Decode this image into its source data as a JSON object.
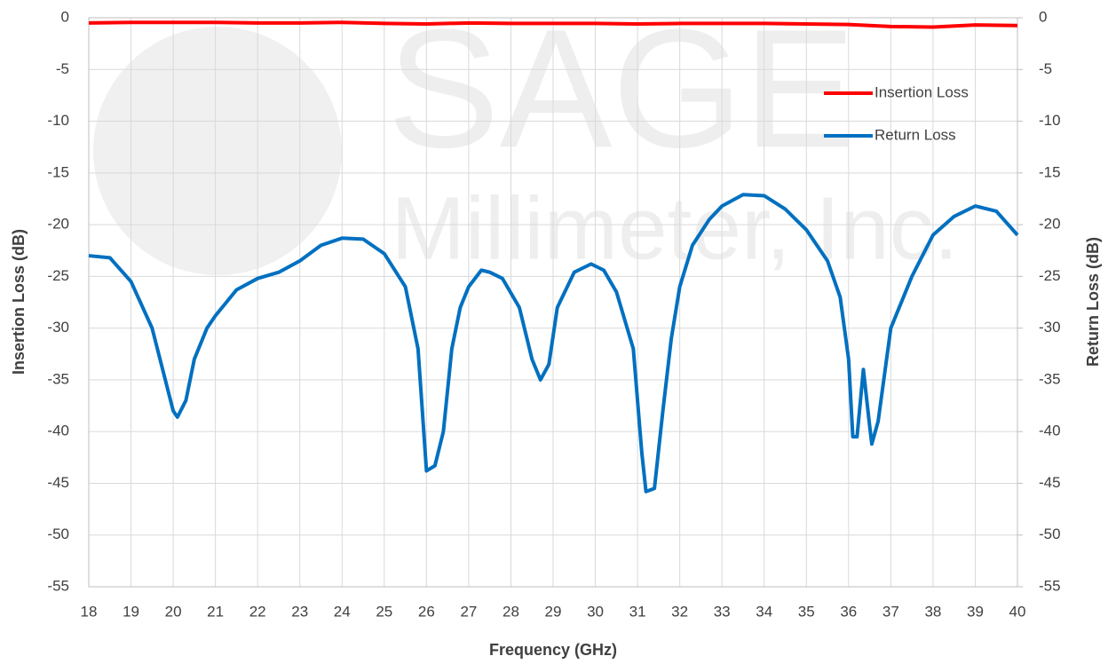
{
  "chart_data": {
    "type": "line",
    "watermark": [
      "SAGE",
      "Millimeter, Inc."
    ],
    "xlabel": "Frequency (GHz)",
    "ylabel": "Insertion Loss (dB)",
    "y2label": "Return Loss (dB)",
    "xlim": [
      18,
      40
    ],
    "xticks": [
      18,
      19,
      20,
      21,
      22,
      23,
      24,
      25,
      26,
      27,
      28,
      29,
      30,
      31,
      32,
      33,
      34,
      35,
      36,
      37,
      38,
      39,
      40
    ],
    "ylim": [
      -55,
      0
    ],
    "yticks": [
      0,
      -5,
      -10,
      -15,
      -20,
      -25,
      -30,
      -35,
      -40,
      -45,
      -50,
      -55
    ],
    "y2lim": [
      -55,
      0
    ],
    "y2ticks": [
      0,
      -5,
      -10,
      -15,
      -20,
      -25,
      -30,
      -35,
      -40,
      -45,
      -50,
      -55
    ],
    "grid": true,
    "legend": "upper right",
    "series": [
      {
        "name": "Insertion Loss",
        "color": "#ff0000",
        "x": [
          18,
          19,
          20,
          21,
          22,
          23,
          24,
          25,
          26,
          27,
          28,
          29,
          30,
          31,
          32,
          33,
          34,
          35,
          36,
          37,
          38,
          39,
          40
        ],
        "values": [
          -0.5,
          -0.45,
          -0.45,
          -0.45,
          -0.5,
          -0.5,
          -0.45,
          -0.55,
          -0.6,
          -0.5,
          -0.55,
          -0.55,
          -0.55,
          -0.6,
          -0.55,
          -0.55,
          -0.55,
          -0.6,
          -0.65,
          -0.85,
          -0.9,
          -0.7,
          -0.75
        ]
      },
      {
        "name": "Return Loss",
        "color": "#0070c0",
        "axis": "y2",
        "x": [
          18,
          18.5,
          19,
          19.5,
          20,
          20.1,
          20.3,
          20.5,
          20.8,
          21,
          21.5,
          22,
          22.5,
          23,
          23.5,
          24,
          24.5,
          25,
          25.5,
          25.8,
          26,
          26.2,
          26.4,
          26.6,
          26.8,
          27,
          27.3,
          27.5,
          27.8,
          28.2,
          28.5,
          28.7,
          28.9,
          29.1,
          29.5,
          29.9,
          30.2,
          30.5,
          30.9,
          31.1,
          31.2,
          31.4,
          31.6,
          31.8,
          32,
          32.3,
          32.7,
          33,
          33.5,
          34,
          34.5,
          35,
          35.5,
          35.8,
          36,
          36.1,
          36.2,
          36.35,
          36.5,
          36.55,
          36.7,
          37,
          37.5,
          38,
          38.5,
          39,
          39.5,
          40
        ],
        "values": [
          -23,
          -23.2,
          -25.5,
          -30,
          -38,
          -38.6,
          -37,
          -33,
          -30,
          -28.8,
          -26.3,
          -25.2,
          -24.6,
          -23.5,
          -22,
          -21.3,
          -21.4,
          -22.8,
          -26,
          -32,
          -43.8,
          -43.3,
          -40,
          -32,
          -28,
          -26,
          -24.4,
          -24.6,
          -25.2,
          -28,
          -33,
          -35,
          -33.5,
          -28,
          -24.6,
          -23.8,
          -24.4,
          -26.5,
          -32,
          -42,
          -45.8,
          -45.5,
          -38,
          -31,
          -26,
          -22,
          -19.5,
          -18.2,
          -17.1,
          -17.2,
          -18.5,
          -20.5,
          -23.5,
          -27,
          -33,
          -40.5,
          -40.5,
          -34,
          -39.5,
          -41.2,
          -39,
          -30,
          -25,
          -21,
          -19.2,
          -18.2,
          -18.7,
          -21
        ]
      }
    ]
  }
}
